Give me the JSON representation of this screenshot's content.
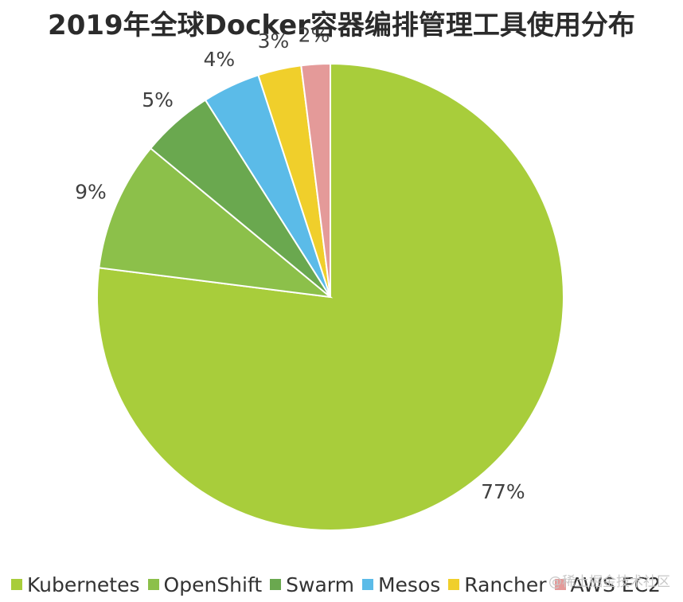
{
  "chart_data": {
    "type": "pie",
    "title": "2019年全球Docker容器编排管理工具使用分布",
    "slices": [
      {
        "label": "Kubernetes",
        "value": 77,
        "display": "77%",
        "color": "#a8cd3b"
      },
      {
        "label": "OpenShift",
        "value": 9,
        "display": "9%",
        "color": "#8cc04a"
      },
      {
        "label": "Swarm",
        "value": 5,
        "display": "5%",
        "color": "#6aa84f"
      },
      {
        "label": "Mesos",
        "value": 4,
        "display": "4%",
        "color": "#5bbbe8"
      },
      {
        "label": "Rancher",
        "value": 3,
        "display": "3%",
        "color": "#f0cf2b"
      },
      {
        "label": "AWS EC2",
        "value": 2,
        "display": "2%",
        "color": "#e49a99"
      }
    ],
    "legend_position": "bottom"
  },
  "watermark": "@稀土掘金技术社区"
}
